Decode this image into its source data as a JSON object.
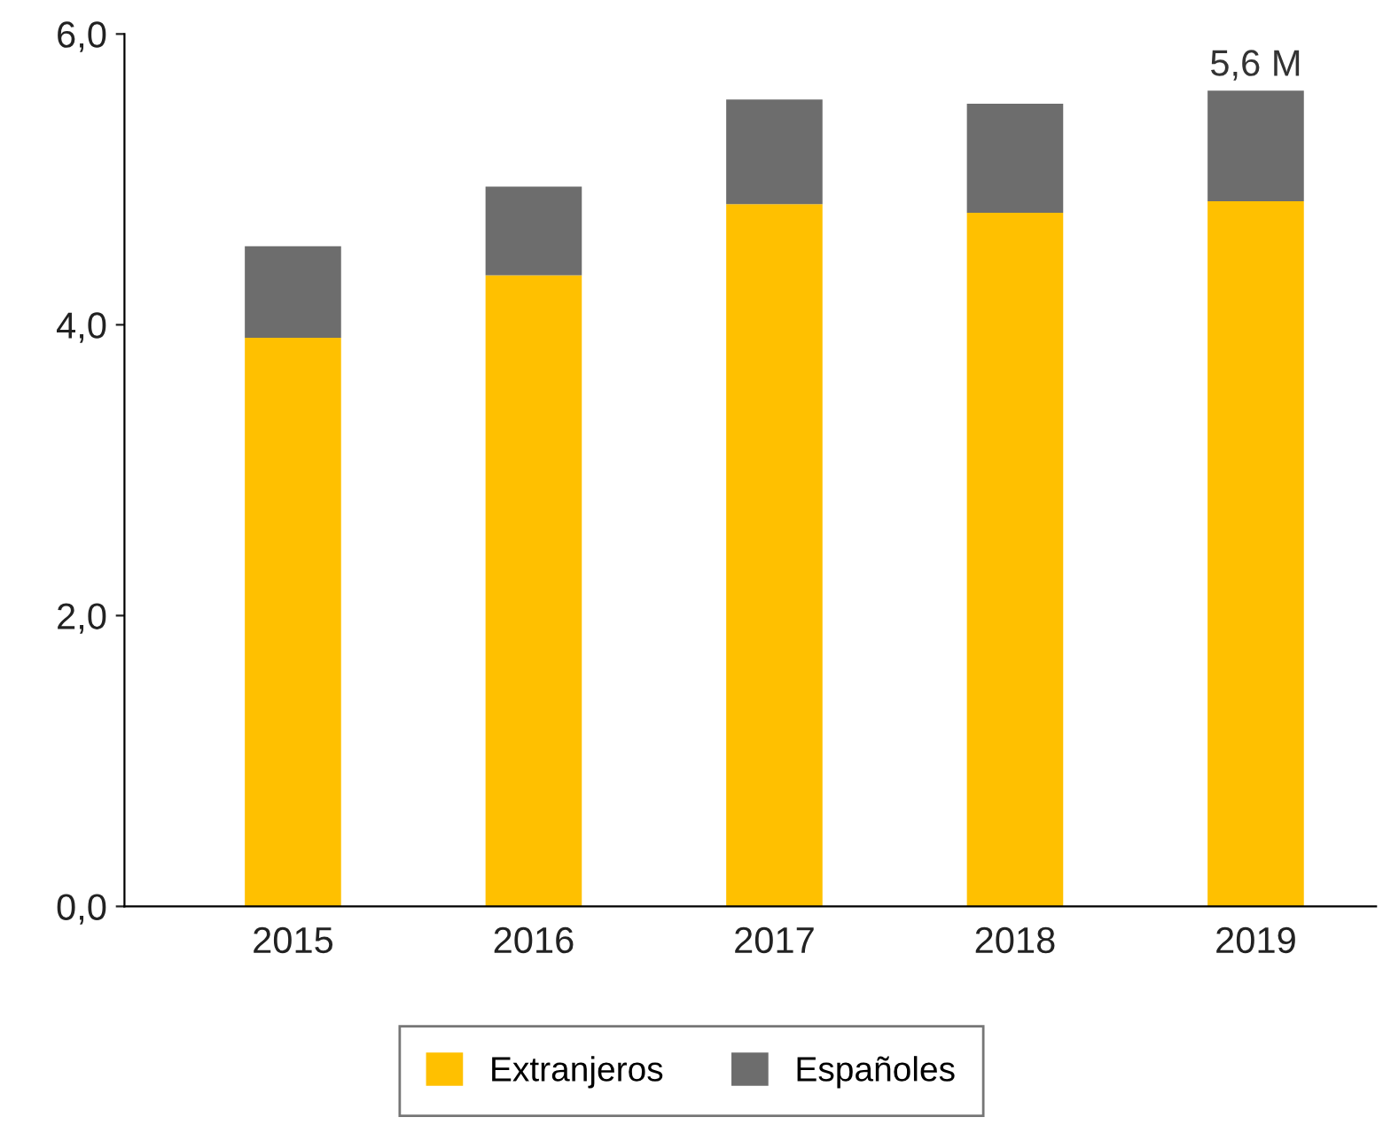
{
  "chart_data": {
    "type": "bar",
    "stacked": true,
    "categories": [
      "2015",
      "2016",
      "2017",
      "2018",
      "2019"
    ],
    "series": [
      {
        "name": "Extranjeros",
        "color": "#ffc000",
        "values": [
          3.91,
          4.34,
          4.83,
          4.77,
          4.85
        ]
      },
      {
        "name": "Españoles",
        "color": "#6d6d6d",
        "values": [
          0.63,
          0.61,
          0.72,
          0.75,
          0.76
        ]
      }
    ],
    "totals": [
      null,
      null,
      null,
      null,
      "5,6 M"
    ],
    "ylim": [
      0,
      6
    ],
    "yticks": [
      {
        "value": 0,
        "label": "0,0"
      },
      {
        "value": 2,
        "label": "2,0"
      },
      {
        "value": 4,
        "label": "4,0"
      },
      {
        "value": 6,
        "label": "6,0"
      }
    ],
    "grid": false,
    "legend": "bottom"
  }
}
